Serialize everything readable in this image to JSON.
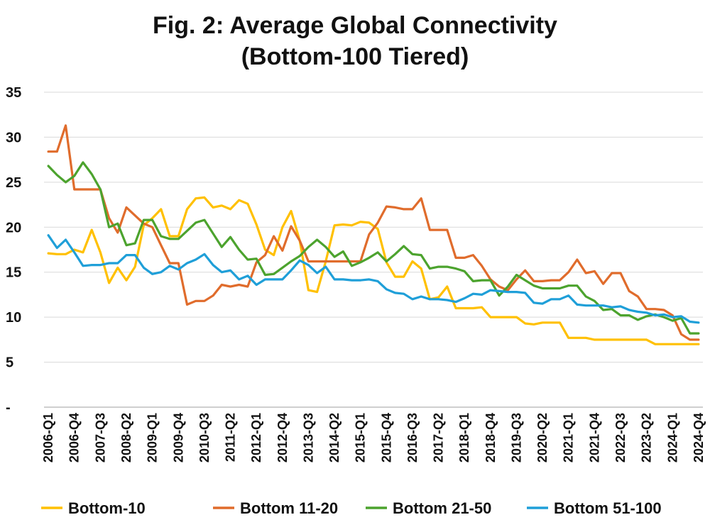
{
  "chart_data": {
    "type": "line",
    "title": "Fig. 2: Average Global Connectivity",
    "subtitle": "(Bottom-100 Tiered)",
    "xlabel": "",
    "ylabel": "",
    "ylim": [
      0,
      35
    ],
    "y_ticks": [
      {
        "value": 0,
        "label": "-"
      },
      {
        "value": 5,
        "label": "5"
      },
      {
        "value": 10,
        "label": "10"
      },
      {
        "value": 15,
        "label": "15"
      },
      {
        "value": 20,
        "label": "20"
      },
      {
        "value": 25,
        "label": "25"
      },
      {
        "value": 30,
        "label": "30"
      },
      {
        "value": 35,
        "label": "35"
      }
    ],
    "x_tick_labels": [
      "2006-Q1",
      "2006-Q4",
      "2007-Q3",
      "2008-Q2",
      "2009-Q1",
      "2009-Q4",
      "2010-Q3",
      "2011-Q2",
      "2012-Q1",
      "2012-Q4",
      "2013-Q3",
      "2014-Q2",
      "2015-Q1",
      "2015-Q4",
      "2016-Q3",
      "2017-Q2",
      "2018-Q1",
      "2018-Q4",
      "2019-Q3",
      "2020-Q2",
      "2021-Q1",
      "2021-Q4",
      "2022-Q3",
      "2023-Q2",
      "2024-Q1",
      "2024-Q4"
    ],
    "grid": "horizontal",
    "legend_position": "bottom",
    "x": [
      "2006-Q1",
      "2006-Q2",
      "2006-Q3",
      "2006-Q4",
      "2007-Q1",
      "2007-Q2",
      "2007-Q3",
      "2007-Q4",
      "2008-Q1",
      "2008-Q2",
      "2008-Q3",
      "2008-Q4",
      "2009-Q1",
      "2009-Q2",
      "2009-Q3",
      "2009-Q4",
      "2010-Q1",
      "2010-Q2",
      "2010-Q3",
      "2010-Q4",
      "2011-Q1",
      "2011-Q2",
      "2011-Q3",
      "2011-Q4",
      "2012-Q1",
      "2012-Q2",
      "2012-Q3",
      "2012-Q4",
      "2013-Q1",
      "2013-Q2",
      "2013-Q3",
      "2013-Q4",
      "2014-Q1",
      "2014-Q2",
      "2014-Q3",
      "2014-Q4",
      "2015-Q1",
      "2015-Q2",
      "2015-Q3",
      "2015-Q4",
      "2016-Q1",
      "2016-Q2",
      "2016-Q3",
      "2016-Q4",
      "2017-Q1",
      "2017-Q2",
      "2017-Q3",
      "2017-Q4",
      "2018-Q1",
      "2018-Q2",
      "2018-Q3",
      "2018-Q4",
      "2019-Q1",
      "2019-Q2",
      "2019-Q3",
      "2019-Q4",
      "2020-Q1",
      "2020-Q2",
      "2020-Q3",
      "2020-Q4",
      "2021-Q1",
      "2021-Q2",
      "2021-Q3",
      "2021-Q4",
      "2022-Q1",
      "2022-Q2",
      "2022-Q3",
      "2022-Q4",
      "2023-Q1",
      "2023-Q2",
      "2023-Q3",
      "2023-Q4",
      "2024-Q1",
      "2024-Q2",
      "2024-Q3",
      "2024-Q4"
    ],
    "series": [
      {
        "name": "Bottom-10",
        "color": "#FFC000",
        "values": [
          17.1,
          17.0,
          17.0,
          17.5,
          17.2,
          19.7,
          17.2,
          13.8,
          15.5,
          14.1,
          15.6,
          20.2,
          21.0,
          22.0,
          19.0,
          19.0,
          22.0,
          23.2,
          23.3,
          22.2,
          22.4,
          22.0,
          23.0,
          22.6,
          20.3,
          17.5,
          16.9,
          20.0,
          21.8,
          18.5,
          13.0,
          12.8,
          16.2,
          20.2,
          20.3,
          20.2,
          20.6,
          20.5,
          19.8,
          16.1,
          14.5,
          14.5,
          16.2,
          15.4,
          12.0,
          12.2,
          13.4,
          11.0,
          11.0,
          11.0,
          11.1,
          10.0,
          10.0,
          10.0,
          10.0,
          9.3,
          9.2,
          9.4,
          9.4,
          9.4,
          7.7,
          7.7,
          7.7,
          7.5,
          7.5,
          7.5,
          7.5,
          7.5,
          7.5,
          7.5,
          7.0,
          7.0,
          7.0,
          7.0,
          7.0,
          7.0
        ]
      },
      {
        "name": "Bottom 11-20",
        "color": "#E06C2C",
        "values": [
          28.4,
          28.4,
          31.3,
          24.2,
          24.2,
          24.2,
          24.2,
          21.0,
          19.4,
          22.2,
          21.3,
          20.4,
          20.0,
          18.0,
          16.0,
          16.0,
          11.4,
          11.8,
          11.8,
          12.4,
          13.6,
          13.4,
          13.6,
          13.4,
          16.1,
          16.9,
          19.0,
          17.4,
          20.1,
          18.5,
          16.2,
          16.2,
          16.2,
          16.2,
          16.2,
          16.2,
          16.2,
          19.2,
          20.5,
          22.3,
          22.2,
          22.0,
          22.0,
          23.2,
          19.7,
          19.7,
          19.7,
          16.6,
          16.6,
          16.9,
          15.7,
          14.2,
          13.4,
          13.0,
          14.2,
          15.2,
          14.0,
          14.0,
          14.1,
          14.1,
          15.0,
          16.4,
          14.9,
          15.1,
          13.7,
          14.9,
          14.9,
          12.9,
          12.3,
          10.9,
          10.9,
          10.8,
          10.2,
          8.1,
          7.5,
          7.5
        ]
      },
      {
        "name": "Bottom 21-50",
        "color": "#4CA32E",
        "values": [
          26.8,
          25.8,
          25.0,
          25.7,
          27.2,
          25.9,
          24.2,
          20.0,
          20.4,
          18.0,
          18.2,
          20.8,
          20.8,
          19.0,
          18.7,
          18.7,
          19.6,
          20.5,
          20.8,
          19.3,
          17.8,
          18.9,
          17.5,
          16.4,
          16.5,
          14.7,
          14.8,
          15.5,
          16.2,
          16.8,
          17.8,
          18.6,
          17.8,
          16.7,
          17.3,
          15.7,
          16.1,
          16.6,
          17.2,
          16.2,
          17.0,
          17.9,
          17.0,
          16.9,
          15.4,
          15.6,
          15.6,
          15.4,
          15.1,
          14.0,
          14.1,
          14.1,
          12.4,
          13.4,
          14.7,
          14.1,
          13.5,
          13.2,
          13.2,
          13.2,
          13.5,
          13.5,
          12.3,
          11.8,
          10.8,
          10.9,
          10.2,
          10.2,
          9.7,
          10.1,
          10.3,
          10.0,
          9.6,
          9.9,
          8.2,
          8.2
        ]
      },
      {
        "name": "Bottom 51-100",
        "color": "#1F9FD8",
        "values": [
          19.1,
          17.7,
          18.6,
          17.2,
          15.7,
          15.8,
          15.8,
          16.0,
          16.0,
          16.9,
          16.9,
          15.5,
          14.8,
          15.0,
          15.7,
          15.3,
          16.0,
          16.4,
          17.0,
          15.8,
          15.0,
          15.2,
          14.2,
          14.6,
          13.6,
          14.2,
          14.2,
          14.2,
          15.2,
          16.3,
          15.8,
          14.9,
          15.6,
          14.2,
          14.2,
          14.1,
          14.1,
          14.2,
          14.0,
          13.1,
          12.7,
          12.6,
          12.0,
          12.3,
          12.0,
          12.0,
          11.9,
          11.7,
          12.1,
          12.6,
          12.5,
          13.0,
          12.9,
          12.8,
          12.8,
          12.7,
          11.6,
          11.5,
          12.0,
          12.0,
          12.4,
          11.4,
          11.3,
          11.3,
          11.3,
          11.1,
          11.2,
          10.8,
          10.6,
          10.5,
          10.2,
          10.3,
          10.0,
          10.1,
          9.5,
          9.4
        ]
      }
    ]
  }
}
